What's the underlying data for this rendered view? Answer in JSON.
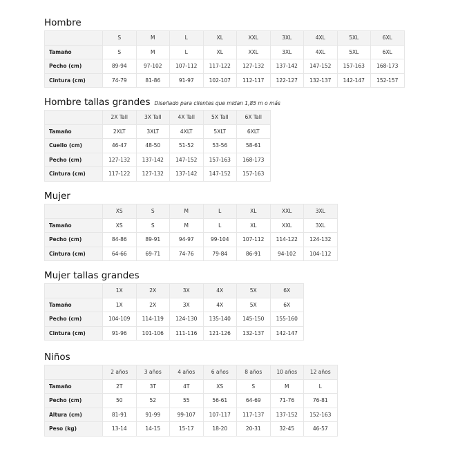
{
  "tables": [
    {
      "title": "Hombre",
      "note": "",
      "header": [
        "S",
        "M",
        "L",
        "XL",
        "XXL",
        "3XL",
        "4XL",
        "5XL",
        "6XL"
      ],
      "rows": [
        {
          "label": "Tamaño",
          "values": [
            "S",
            "M",
            "L",
            "XL",
            "XXL",
            "3XL",
            "4XL",
            "5XL",
            "6XL"
          ]
        },
        {
          "label": "Pecho (cm)",
          "values": [
            "89-94",
            "97-102",
            "107-112",
            "117-122",
            "127-132",
            "137-142",
            "147-152",
            "157-163",
            "168-173"
          ]
        },
        {
          "label": "Cintura (cm)",
          "values": [
            "74-79",
            "81-86",
            "91-97",
            "102-107",
            "112-117",
            "122-127",
            "132-137",
            "142-147",
            "152-157"
          ]
        }
      ]
    },
    {
      "title": "Hombre tallas grandes",
      "note": "Diseñado para clientes que midan 1,85 m o más",
      "header": [
        "2X Tall",
        "3X Tall",
        "4X Tall",
        "5X Tall",
        "6X Tall"
      ],
      "rows": [
        {
          "label": "Tamaño",
          "values": [
            "2XLT",
            "3XLT",
            "4XLT",
            "5XLT",
            "6XLT"
          ]
        },
        {
          "label": "Cuello (cm)",
          "values": [
            "46-47",
            "48-50",
            "51-52",
            "53-56",
            "58-61"
          ]
        },
        {
          "label": "Pecho (cm)",
          "values": [
            "127-132",
            "137-142",
            "147-152",
            "157-163",
            "168-173"
          ]
        },
        {
          "label": "Cintura (cm)",
          "values": [
            "117-122",
            "127-132",
            "137-142",
            "147-152",
            "157-163"
          ]
        }
      ]
    },
    {
      "title": "Mujer",
      "note": "",
      "header": [
        "XS",
        "S",
        "M",
        "L",
        "XL",
        "XXL",
        "3XL"
      ],
      "rows": [
        {
          "label": "Tamaño",
          "values": [
            "XS",
            "S",
            "M",
            "L",
            "XL",
            "XXL",
            "3XL"
          ]
        },
        {
          "label": "Pecho (cm)",
          "values": [
            "84-86",
            "89-91",
            "94-97",
            "99-104",
            "107-112",
            "114-122",
            "124-132"
          ]
        },
        {
          "label": "Cintura (cm)",
          "values": [
            "64-66",
            "69-71",
            "74-76",
            "79-84",
            "86-91",
            "94-102",
            "104-112"
          ]
        }
      ]
    },
    {
      "title": "Mujer tallas grandes",
      "note": "",
      "header": [
        "1X",
        "2X",
        "3X",
        "4X",
        "5X",
        "6X"
      ],
      "rows": [
        {
          "label": "Tamaño",
          "values": [
            "1X",
            "2X",
            "3X",
            "4X",
            "5X",
            "6X"
          ]
        },
        {
          "label": "Pecho (cm)",
          "values": [
            "104-109",
            "114-119",
            "124-130",
            "135-140",
            "145-150",
            "155-160"
          ]
        },
        {
          "label": "Cintura (cm)",
          "values": [
            "91-96",
            "101-106",
            "111-116",
            "121-126",
            "132-137",
            "142-147"
          ]
        }
      ]
    },
    {
      "title": "Niños",
      "note": "",
      "header": [
        "2 años",
        "3 años",
        "4 años",
        "6 años",
        "8 años",
        "10 años",
        "12 años"
      ],
      "rows": [
        {
          "label": "Tamaño",
          "values": [
            "2T",
            "3T",
            "4T",
            "XS",
            "S",
            "M",
            "L"
          ]
        },
        {
          "label": "Pecho (cm)",
          "values": [
            "50",
            "52",
            "55",
            "56-61",
            "64-69",
            "71-76",
            "76-81"
          ]
        },
        {
          "label": "Altura (cm)",
          "values": [
            "81-91",
            "91-99",
            "99-107",
            "107-117",
            "117-137",
            "137-152",
            "152-163"
          ]
        },
        {
          "label": "Peso (kg)",
          "values": [
            "13-14",
            "14-15",
            "15-17",
            "18-20",
            "20-31",
            "32-45",
            "46-57"
          ]
        }
      ]
    }
  ]
}
